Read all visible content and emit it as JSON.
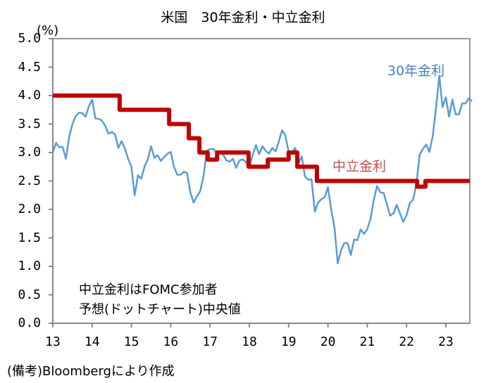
{
  "chart_data": {
    "type": "line",
    "title": "米国　30年金利・中立金利",
    "ylabel": "(%)",
    "ylim": [
      0,
      5
    ],
    "xlim": [
      13,
      23.6
    ],
    "yticks": [
      "0.0",
      "0.5",
      "1.0",
      "1.5",
      "2.0",
      "2.5",
      "3.0",
      "3.5",
      "4.0",
      "4.5",
      "5.0"
    ],
    "xticks": [
      "13",
      "14",
      "15",
      "16",
      "17",
      "18",
      "19",
      "20",
      "21",
      "22",
      "23"
    ],
    "grid": false,
    "annotation": [
      "中立金利はFOMC参加者",
      "予想(ドットチャート)中央値"
    ],
    "footer": "(備考)Bloombergにより作成",
    "series": [
      {
        "name": "30年金利",
        "color": "#5b9bd5",
        "x_start": 13,
        "x_step_years": 0.08333,
        "values": [
          3.0,
          3.17,
          3.09,
          3.1,
          2.89,
          3.27,
          3.5,
          3.64,
          3.7,
          3.69,
          3.63,
          3.81,
          3.93,
          3.6,
          3.59,
          3.56,
          3.47,
          3.33,
          3.36,
          3.32,
          3.08,
          3.2,
          3.07,
          2.89,
          2.75,
          2.25,
          2.6,
          2.54,
          2.75,
          2.88,
          3.11,
          2.91,
          2.95,
          2.85,
          2.92,
          2.98,
          3.01,
          2.75,
          2.61,
          2.61,
          2.66,
          2.64,
          2.3,
          2.12,
          2.23,
          2.32,
          2.58,
          3.03,
          3.06,
          3.06,
          3.0,
          3.02,
          2.96,
          2.86,
          2.84,
          2.89,
          2.73,
          2.86,
          2.88,
          2.83,
          2.74,
          2.95,
          3.13,
          2.97,
          3.11,
          3.03,
          2.98,
          3.08,
          3.02,
          3.19,
          3.39,
          3.3,
          3.01,
          3.0,
          3.08,
          2.81,
          2.93,
          2.58,
          2.52,
          2.53,
          1.96,
          2.12,
          2.18,
          2.21,
          2.39,
          2.0,
          1.68,
          1.05,
          1.28,
          1.41,
          1.41,
          1.2,
          1.47,
          1.46,
          1.65,
          1.57,
          1.65,
          1.83,
          2.17,
          2.41,
          2.3,
          2.29,
          2.09,
          1.89,
          1.93,
          2.08,
          1.93,
          1.78,
          1.9,
          2.11,
          2.17,
          2.44,
          2.96,
          3.06,
          3.14,
          3.01,
          3.29,
          3.78,
          4.35,
          3.8,
          3.97,
          3.63,
          3.93,
          3.67,
          3.67,
          3.86,
          3.86,
          3.95,
          3.9
        ]
      },
      {
        "name": "中立金利",
        "color": "#c00000",
        "steps": [
          [
            13,
            4.0
          ],
          [
            14.7,
            3.75
          ],
          [
            15.96,
            3.5
          ],
          [
            16.46,
            3.25
          ],
          [
            16.73,
            3.0
          ],
          [
            16.94,
            2.875
          ],
          [
            17.18,
            3.0
          ],
          [
            17.98,
            2.75
          ],
          [
            18.47,
            2.875
          ],
          [
            19.0,
            3.0
          ],
          [
            19.22,
            2.75
          ],
          [
            19.72,
            2.5
          ],
          [
            22.27,
            2.4
          ],
          [
            22.48,
            2.5
          ],
          [
            23.6,
            2.5
          ]
        ]
      }
    ]
  }
}
